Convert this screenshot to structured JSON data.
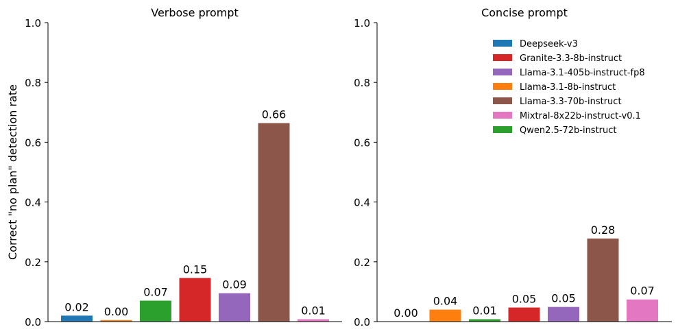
{
  "chart_data": [
    {
      "type": "bar",
      "title": "Verbose prompt",
      "ylabel": "Correct \"no plan\" detection rate",
      "ylim": [
        0,
        1.0
      ],
      "yticks": [
        0.0,
        0.2,
        0.4,
        0.6,
        0.8,
        1.0
      ],
      "ytick_labels": [
        "0.0",
        "0.2",
        "0.4",
        "0.6",
        "0.8",
        "1.0"
      ],
      "grid": false,
      "bars": [
        {
          "model": "Deepseek-v3",
          "value": 0.02,
          "label": "0.02"
        },
        {
          "model": "Llama-3.1-8b-instruct",
          "value": 0.005,
          "label": "0.00"
        },
        {
          "model": "Qwen2.5-72b-instruct",
          "value": 0.07,
          "label": "0.07"
        },
        {
          "model": "Granite-3.3-8b-instruct",
          "value": 0.146,
          "label": "0.15"
        },
        {
          "model": "Llama-3.1-405b-instruct-fp8",
          "value": 0.095,
          "label": "0.09"
        },
        {
          "model": "Llama-3.3-70b-instruct",
          "value": 0.664,
          "label": "0.66"
        },
        {
          "model": "Mixtral-8x22b-instruct-v0.1",
          "value": 0.008,
          "label": "0.01"
        }
      ]
    },
    {
      "type": "bar",
      "title": "Concise prompt",
      "ylabel": "",
      "ylim": [
        0,
        1.0
      ],
      "yticks": [
        0.0,
        0.2,
        0.4,
        0.6,
        0.8,
        1.0
      ],
      "ytick_labels": [
        "0.0",
        "0.2",
        "0.4",
        "0.6",
        "0.8",
        "1.0"
      ],
      "grid": false,
      "legend_position": "top-right",
      "bars": [
        {
          "model": "Deepseek-v3",
          "value": 0.0,
          "label": "0.00"
        },
        {
          "model": "Llama-3.1-8b-instruct",
          "value": 0.04,
          "label": "0.04"
        },
        {
          "model": "Qwen2.5-72b-instruct",
          "value": 0.008,
          "label": "0.01"
        },
        {
          "model": "Granite-3.3-8b-instruct",
          "value": 0.047,
          "label": "0.05"
        },
        {
          "model": "Llama-3.1-405b-instruct-fp8",
          "value": 0.049,
          "label": "0.05"
        },
        {
          "model": "Llama-3.3-70b-instruct",
          "value": 0.278,
          "label": "0.28"
        },
        {
          "model": "Mixtral-8x22b-instruct-v0.1",
          "value": 0.074,
          "label": "0.07"
        }
      ]
    }
  ],
  "legend": [
    {
      "name": "Deepseek-v3",
      "color": "#1f77b4"
    },
    {
      "name": "Granite-3.3-8b-instruct",
      "color": "#d62728"
    },
    {
      "name": "Llama-3.1-405b-instruct-fp8",
      "color": "#9467bd"
    },
    {
      "name": "Llama-3.1-8b-instruct",
      "color": "#ff7f0e"
    },
    {
      "name": "Llama-3.3-70b-instruct",
      "color": "#8c564b"
    },
    {
      "name": "Mixtral-8x22b-instruct-v0.1",
      "color": "#e377c2"
    },
    {
      "name": "Qwen2.5-72b-instruct",
      "color": "#2ca02c"
    }
  ]
}
